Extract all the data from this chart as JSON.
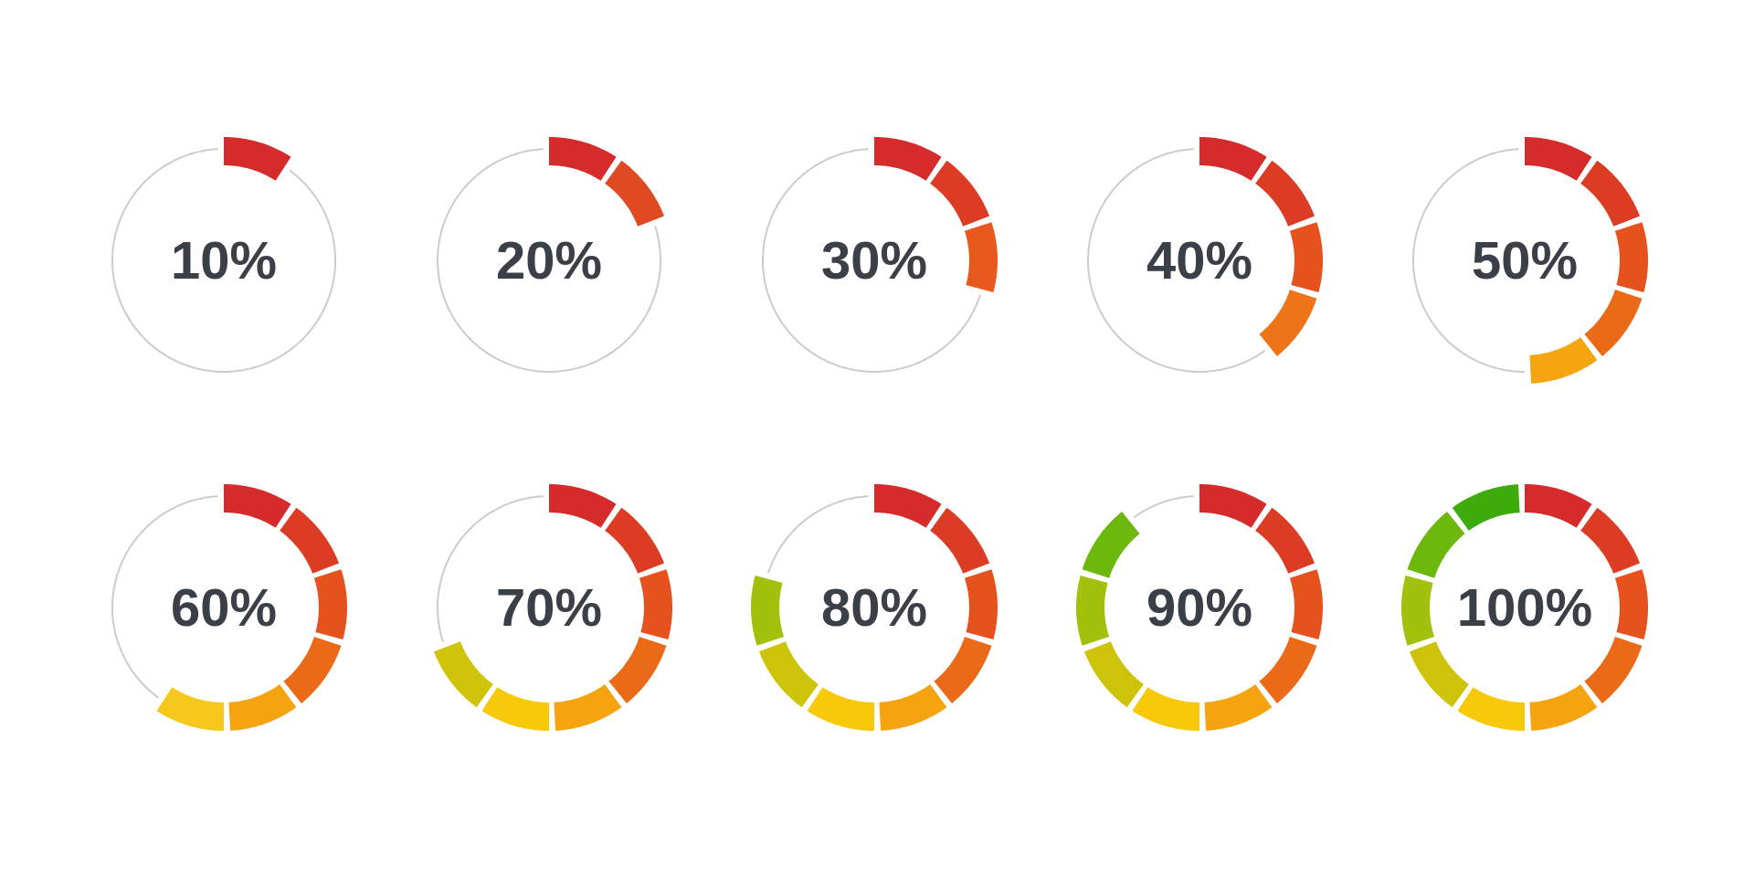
{
  "chart_data": [
    {
      "type": "donut",
      "title": "10%",
      "line_style": "dotted",
      "categories": [
        null,
        null
      ],
      "values": [
        10,
        90
      ],
      "colors": [
        "#d62b2b",
        "#cccccc"
      ]
    },
    {
      "type": "donut",
      "title": "20%",
      "line_style": "dotted",
      "categories": [
        null,
        null,
        null
      ],
      "values": [
        10,
        10,
        80
      ],
      "colors": [
        "#d62b2b",
        "#e04a22",
        "#cccccc"
      ]
    },
    {
      "type": "donut",
      "title": "30%",
      "line_style": "dotted",
      "categories": [
        null,
        null,
        null,
        null
      ],
      "values": [
        10,
        10,
        10,
        70
      ],
      "colors": [
        "#d62b2b",
        "#dd3c24",
        "#e8591d",
        "#cccccc"
      ]
    },
    {
      "type": "donut",
      "title": "40%",
      "line_style": "dotted",
      "categories": [
        null,
        null,
        null,
        null,
        null
      ],
      "values": [
        10,
        10,
        10,
        10,
        60
      ],
      "colors": [
        "#d62b2b",
        "#dd3c24",
        "#e5521e",
        "#ed7418",
        "#cccccc"
      ]
    },
    {
      "type": "donut",
      "title": "50%",
      "line_style": "dotted",
      "categories": [
        null,
        null,
        null,
        null,
        null,
        null
      ],
      "values": [
        10,
        10,
        10,
        10,
        10,
        50
      ],
      "colors": [
        "#d62b2b",
        "#dd3c24",
        "#e5521e",
        "#eb6a17",
        "#f5a60f",
        "#cccccc"
      ]
    },
    {
      "type": "donut",
      "title": "60%",
      "line_style": "dotted",
      "categories": [
        null,
        null,
        null,
        null,
        null,
        null,
        null
      ],
      "values": [
        10,
        10,
        10,
        10,
        10,
        10,
        40
      ],
      "colors": [
        "#d62b2b",
        "#dd3c24",
        "#e5521e",
        "#eb6a17",
        "#f5a30f",
        "#f6c81e",
        "#cccccc"
      ]
    },
    {
      "type": "donut",
      "title": "70%",
      "line_style": "dotted",
      "categories": [
        null,
        null,
        null,
        null,
        null,
        null,
        null,
        null
      ],
      "values": [
        10,
        10,
        10,
        10,
        10,
        10,
        10,
        30
      ],
      "colors": [
        "#d62b2b",
        "#dd3c24",
        "#e5521e",
        "#eb6a17",
        "#f5a30f",
        "#f8c80a",
        "#cfc40a",
        "#cccccc"
      ]
    },
    {
      "type": "donut",
      "title": "80%",
      "line_style": "dotted",
      "categories": [
        null,
        null,
        null,
        null,
        null,
        null,
        null,
        null,
        null
      ],
      "values": [
        10,
        10,
        10,
        10,
        10,
        10,
        10,
        10,
        20
      ],
      "colors": [
        "#d62b2b",
        "#dd3c24",
        "#e5521e",
        "#eb6a17",
        "#f5a30f",
        "#f8c80a",
        "#cdc40a",
        "#a2c10c",
        "#cccccc"
      ]
    },
    {
      "type": "donut",
      "title": "90%",
      "line_style": "dotted",
      "categories": [
        null,
        null,
        null,
        null,
        null,
        null,
        null,
        null,
        null,
        null
      ],
      "values": [
        10,
        10,
        10,
        10,
        10,
        10,
        10,
        10,
        10,
        10
      ],
      "colors": [
        "#d62b2b",
        "#dd3c24",
        "#e5521e",
        "#eb6a17",
        "#f5a30f",
        "#f8c80a",
        "#cdc40a",
        "#a2c10c",
        "#6cb80d",
        "#cccccc"
      ]
    },
    {
      "type": "donut",
      "title": "100%",
      "categories": [
        null,
        null,
        null,
        null,
        null,
        null,
        null,
        null,
        null,
        null
      ],
      "values": [
        10,
        10,
        10,
        10,
        10,
        10,
        10,
        10,
        10,
        10
      ],
      "colors": [
        "#d62b2b",
        "#dd3c24",
        "#e5521e",
        "#eb6a17",
        "#f5a30f",
        "#f8c80a",
        "#cdc40a",
        "#a2c10c",
        "#6cb80d",
        "#3dab0c"
      ]
    }
  ]
}
